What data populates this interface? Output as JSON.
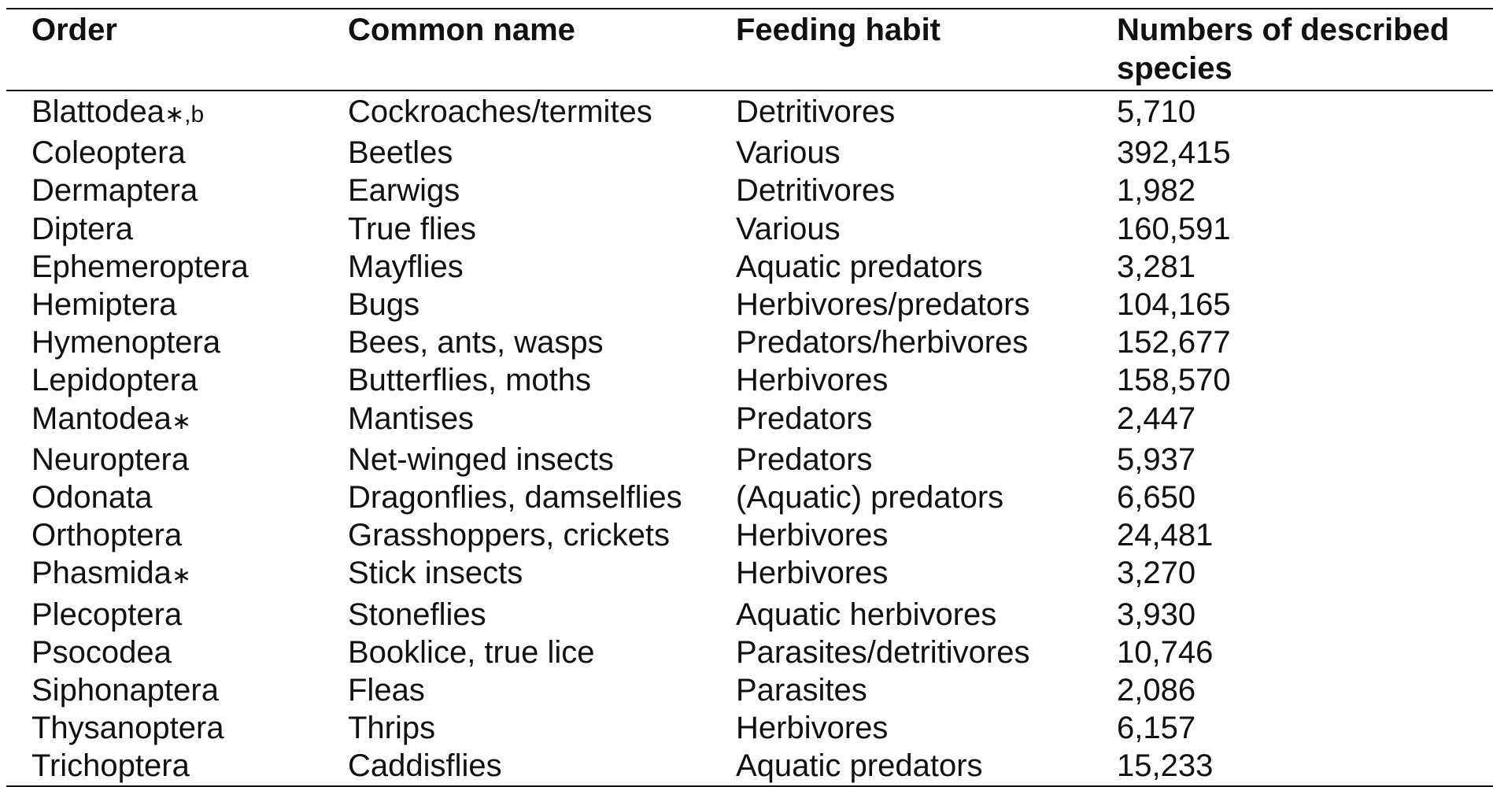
{
  "table": {
    "headers": [
      "Order",
      "Common name",
      "Feeding habit",
      "Numbers of described species"
    ],
    "rows": [
      {
        "order": "Blattodea",
        "mark": "∗,b",
        "common": "Cockroaches/termites",
        "feeding": "Detritivores",
        "species": "5,710"
      },
      {
        "order": "Coleoptera",
        "mark": "",
        "common": "Beetles",
        "feeding": "Various",
        "species": "392,415"
      },
      {
        "order": "Dermaptera",
        "mark": "",
        "common": "Earwigs",
        "feeding": "Detritivores",
        "species": "1,982"
      },
      {
        "order": "Diptera",
        "mark": "",
        "common": "True flies",
        "feeding": "Various",
        "species": "160,591"
      },
      {
        "order": "Ephemeroptera",
        "mark": "",
        "common": "Mayflies",
        "feeding": "Aquatic predators",
        "species": "3,281"
      },
      {
        "order": "Hemiptera",
        "mark": "",
        "common": "Bugs",
        "feeding": "Herbivores/predators",
        "species": "104,165"
      },
      {
        "order": "Hymenoptera",
        "mark": "",
        "common": "Bees, ants, wasps",
        "feeding": "Predators/herbivores",
        "species": "152,677"
      },
      {
        "order": "Lepidoptera",
        "mark": "",
        "common": "Butterflies, moths",
        "feeding": "Herbivores",
        "species": "158,570"
      },
      {
        "order": "Mantodea",
        "mark": "∗",
        "common": "Mantises",
        "feeding": "Predators",
        "species": "2,447"
      },
      {
        "order": "Neuroptera",
        "mark": "",
        "common": "Net-winged insects",
        "feeding": "Predators",
        "species": "5,937"
      },
      {
        "order": "Odonata",
        "mark": "",
        "common": "Dragonflies, damselflies",
        "feeding": "(Aquatic) predators",
        "species": "6,650"
      },
      {
        "order": "Orthoptera",
        "mark": "",
        "common": "Grasshoppers, crickets",
        "feeding": "Herbivores",
        "species": "24,481"
      },
      {
        "order": "Phasmida",
        "mark": "∗",
        "common": "Stick insects",
        "feeding": "Herbivores",
        "species": "3,270"
      },
      {
        "order": "Plecoptera",
        "mark": "",
        "common": "Stoneflies",
        "feeding": "Aquatic herbivores",
        "species": "3,930"
      },
      {
        "order": "Psocodea",
        "mark": "",
        "common": "Booklice, true lice",
        "feeding": "Parasites/detritivores",
        "species": "10,746"
      },
      {
        "order": "Siphonaptera",
        "mark": "",
        "common": "Fleas",
        "feeding": "Parasites",
        "species": "2,086"
      },
      {
        "order": "Thysanoptera",
        "mark": "",
        "common": "Thrips",
        "feeding": "Herbivores",
        "species": "6,157"
      },
      {
        "order": "Trichoptera",
        "mark": "",
        "common": "Caddisflies",
        "feeding": "Aquatic predators",
        "species": "15,233"
      }
    ]
  }
}
